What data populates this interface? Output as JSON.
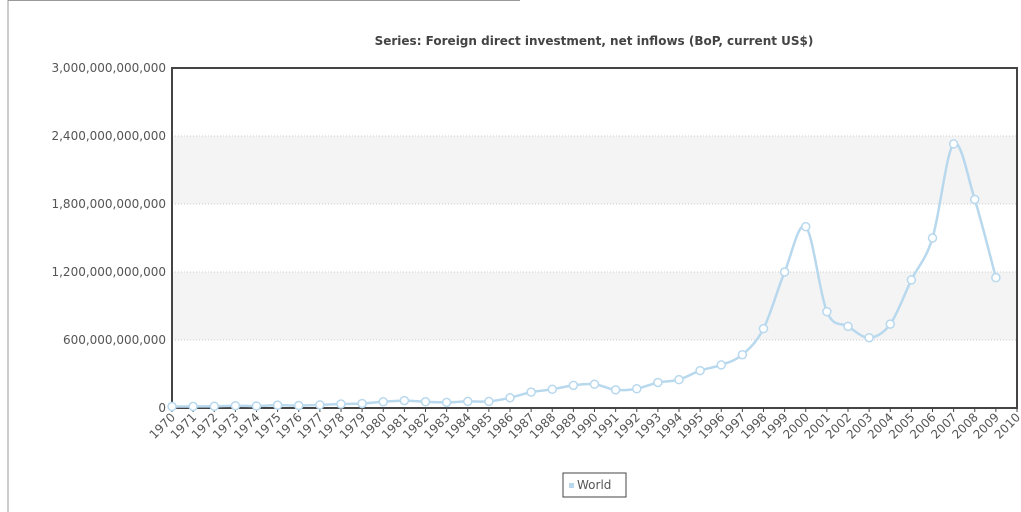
{
  "chart_data": {
    "type": "line",
    "title": "Series: Foreign direct investment, net inflows (BoP, current US$)",
    "x": [
      1970,
      1971,
      1972,
      1973,
      1974,
      1975,
      1976,
      1977,
      1978,
      1979,
      1980,
      1981,
      1982,
      1983,
      1984,
      1985,
      1986,
      1987,
      1988,
      1989,
      1990,
      1991,
      1992,
      1993,
      1994,
      1995,
      1996,
      1997,
      1998,
      1999,
      2000,
      2001,
      2002,
      2003,
      2004,
      2005,
      2006,
      2007,
      2008,
      2009
    ],
    "series": [
      {
        "name": "World",
        "color": "#b8d8ee",
        "values": [
          13000000000,
          14000000000,
          15000000000,
          20000000000,
          18000000000,
          25000000000,
          22000000000,
          28000000000,
          35000000000,
          40000000000,
          55000000000,
          65000000000,
          55000000000,
          50000000000,
          58000000000,
          58000000000,
          90000000000,
          140000000000,
          165000000000,
          200000000000,
          210000000000,
          160000000000,
          170000000000,
          225000000000,
          250000000000,
          330000000000,
          380000000000,
          470000000000,
          700000000000,
          1200000000000,
          1600000000000,
          850000000000,
          720000000000,
          620000000000,
          740000000000,
          1130000000000,
          1500000000000,
          2330000000000,
          1840000000000,
          1150000000000
        ]
      }
    ],
    "xlim": [
      1970,
      2010
    ],
    "xticks": [
      1970,
      1971,
      1972,
      1973,
      1974,
      1975,
      1976,
      1977,
      1978,
      1979,
      1980,
      1981,
      1982,
      1983,
      1984,
      1985,
      1986,
      1987,
      1988,
      1989,
      1990,
      1991,
      1992,
      1993,
      1994,
      1995,
      1996,
      1997,
      1998,
      1999,
      2000,
      2001,
      2002,
      2003,
      2004,
      2005,
      2006,
      2007,
      2008,
      2009,
      2010
    ],
    "ylim": [
      0,
      3000000000000
    ],
    "yticks": [
      0,
      {
        "value": 600000000000,
        "label": "600,000,000,000"
      },
      {
        "value": 1200000000000,
        "label": "1,200,000,000,000"
      },
      {
        "value": 1800000000000,
        "label": "1,800,000,000,000"
      },
      {
        "value": 2400000000000,
        "label": "2,400,000,000,000"
      },
      {
        "value": 3000000000000,
        "label": "3,000,000,000,000"
      }
    ],
    "grid": true
  }
}
